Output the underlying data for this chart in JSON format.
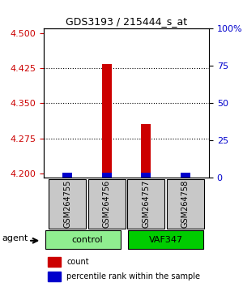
{
  "title": "GDS3193 / 215444_s_at",
  "samples": [
    "GSM264755",
    "GSM264756",
    "GSM264757",
    "GSM264758"
  ],
  "groups": [
    "control",
    "control",
    "VAF347",
    "VAF347"
  ],
  "group_colors": {
    "control": "#90EE90",
    "VAF347": "#00CC00"
  },
  "red_values": [
    4.2,
    4.435,
    4.305,
    4.2
  ],
  "blue_values": [
    4.202,
    4.201,
    4.202,
    4.202
  ],
  "ylim_left": [
    4.19,
    4.51
  ],
  "yticks_left": [
    4.2,
    4.275,
    4.35,
    4.425,
    4.5
  ],
  "yticks_right": [
    0,
    25,
    50,
    75,
    100
  ],
  "ylabel_left_color": "#CC0000",
  "ylabel_right_color": "#0000CC",
  "bar_base": 4.19,
  "bar_width": 0.6
}
